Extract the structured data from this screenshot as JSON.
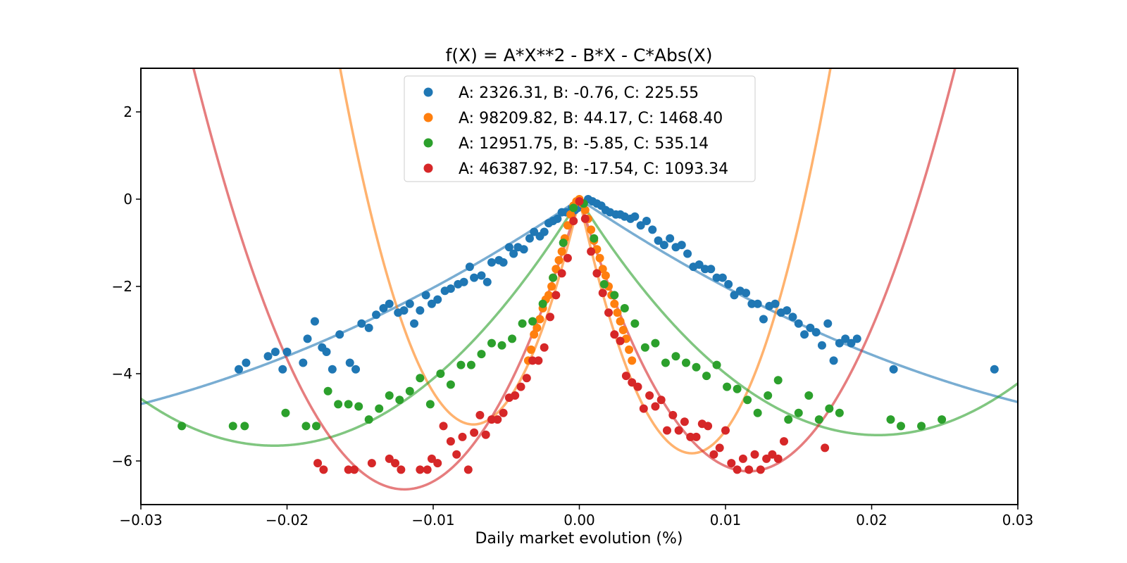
{
  "chart_data": {
    "type": "scatter",
    "title": "f(X) = A*X**2 - B*X - C*Abs(X)",
    "xlabel": "Daily market evolution (%)",
    "ylabel": "",
    "xlim": [
      -0.03,
      0.03
    ],
    "ylim": [
      -7,
      3
    ],
    "x_ticks": [
      -0.03,
      -0.02,
      -0.01,
      0.0,
      0.01,
      0.02,
      0.03
    ],
    "x_tick_labels": [
      "−0.03",
      "−0.02",
      "−0.01",
      "0.00",
      "0.01",
      "0.02",
      "0.03"
    ],
    "y_ticks": [
      2,
      0,
      -2,
      -4,
      -6
    ],
    "y_tick_labels": [
      "2",
      "0",
      "−2",
      "−4",
      "−6"
    ],
    "grid": false,
    "legend_position": "top-center",
    "series": [
      {
        "name": "A: 2326.31, B: -0.76, C: 225.55",
        "color": "#1f77b4",
        "fit": {
          "A": 2326.31,
          "B": -0.76,
          "C": 225.55
        },
        "points": [
          [
            -0.0233,
            -3.9
          ],
          [
            -0.0228,
            -3.75
          ],
          [
            -0.0213,
            -3.6
          ],
          [
            -0.0208,
            -3.5
          ],
          [
            -0.0203,
            -3.9
          ],
          [
            -0.02,
            -3.5
          ],
          [
            -0.0189,
            -3.75
          ],
          [
            -0.0186,
            -3.2
          ],
          [
            -0.0181,
            -2.8
          ],
          [
            -0.0176,
            -3.4
          ],
          [
            -0.0173,
            -3.5
          ],
          [
            -0.0169,
            -3.9
          ],
          [
            -0.0164,
            -3.1
          ],
          [
            -0.0157,
            -3.75
          ],
          [
            -0.0153,
            -3.9
          ],
          [
            -0.0149,
            -2.85
          ],
          [
            -0.0144,
            -2.95
          ],
          [
            -0.0139,
            -2.65
          ],
          [
            -0.0134,
            -2.5
          ],
          [
            -0.013,
            -2.4
          ],
          [
            -0.0124,
            -2.6
          ],
          [
            -0.012,
            -2.55
          ],
          [
            -0.0116,
            -2.4
          ],
          [
            -0.0113,
            -2.85
          ],
          [
            -0.0109,
            -2.55
          ],
          [
            -0.0105,
            -2.2
          ],
          [
            -0.0101,
            -2.4
          ],
          [
            -0.0097,
            -2.3
          ],
          [
            -0.0092,
            -2.1
          ],
          [
            -0.0088,
            -2.05
          ],
          [
            -0.0083,
            -1.95
          ],
          [
            -0.0079,
            -1.9
          ],
          [
            -0.0075,
            -1.55
          ],
          [
            -0.0072,
            -1.8
          ],
          [
            -0.0067,
            -1.75
          ],
          [
            -0.0063,
            -1.9
          ],
          [
            -0.006,
            -1.45
          ],
          [
            -0.0055,
            -1.4
          ],
          [
            -0.0052,
            -1.45
          ],
          [
            -0.0048,
            -1.1
          ],
          [
            -0.0045,
            -1.25
          ],
          [
            -0.0042,
            -1.1
          ],
          [
            -0.0038,
            -1.15
          ],
          [
            -0.0034,
            -0.9
          ],
          [
            -0.0031,
            -0.75
          ],
          [
            -0.0027,
            -0.85
          ],
          [
            -0.0024,
            -0.75
          ],
          [
            -0.0021,
            -0.55
          ],
          [
            -0.0018,
            -0.5
          ],
          [
            -0.0015,
            -0.45
          ],
          [
            -0.0012,
            -0.3
          ],
          [
            -0.0009,
            -0.3
          ],
          [
            -0.0005,
            -0.2
          ],
          [
            -0.0003,
            -0.25
          ],
          [
            -0.0001,
            -0.2
          ],
          [
            0.0003,
            -0.1
          ],
          [
            0.0006,
            0.0
          ],
          [
            0.0009,
            -0.05
          ],
          [
            0.0012,
            -0.1
          ],
          [
            0.0015,
            -0.15
          ],
          [
            0.0018,
            -0.25
          ],
          [
            0.0021,
            -0.3
          ],
          [
            0.0025,
            -0.35
          ],
          [
            0.0028,
            -0.35
          ],
          [
            0.0031,
            -0.4
          ],
          [
            0.0035,
            -0.45
          ],
          [
            0.0038,
            -0.4
          ],
          [
            0.0042,
            -0.6
          ],
          [
            0.0046,
            -0.5
          ],
          [
            0.005,
            -0.7
          ],
          [
            0.0054,
            -0.95
          ],
          [
            0.0058,
            -1.05
          ],
          [
            0.0062,
            -0.9
          ],
          [
            0.0066,
            -1.1
          ],
          [
            0.007,
            -1.05
          ],
          [
            0.0074,
            -1.25
          ],
          [
            0.0078,
            -1.55
          ],
          [
            0.0082,
            -1.5
          ],
          [
            0.0086,
            -1.6
          ],
          [
            0.009,
            -1.6
          ],
          [
            0.0094,
            -1.8
          ],
          [
            0.0098,
            -1.8
          ],
          [
            0.0102,
            -1.95
          ],
          [
            0.0106,
            -2.2
          ],
          [
            0.011,
            -2.1
          ],
          [
            0.0114,
            -2.15
          ],
          [
            0.0118,
            -2.4
          ],
          [
            0.0122,
            -2.4
          ],
          [
            0.0126,
            -2.75
          ],
          [
            0.013,
            -2.45
          ],
          [
            0.0134,
            -2.4
          ],
          [
            0.0138,
            -2.6
          ],
          [
            0.0142,
            -2.55
          ],
          [
            0.0146,
            -2.7
          ],
          [
            0.015,
            -2.85
          ],
          [
            0.0154,
            -3.1
          ],
          [
            0.0158,
            -2.95
          ],
          [
            0.0162,
            -3.05
          ],
          [
            0.0166,
            -3.35
          ],
          [
            0.017,
            -2.85
          ],
          [
            0.0174,
            -3.7
          ],
          [
            0.0178,
            -3.3
          ],
          [
            0.0182,
            -3.2
          ],
          [
            0.0186,
            -3.3
          ],
          [
            0.019,
            -3.2
          ],
          [
            0.0215,
            -3.9
          ],
          [
            0.0284,
            -3.9
          ]
        ]
      },
      {
        "name": "A: 98209.82, B: 44.17, C: 1468.40",
        "color": "#ff7f0e",
        "fit": {
          "A": 98209.82,
          "B": 44.17,
          "C": 1468.4
        },
        "points": [
          [
            -0.0035,
            -3.7
          ],
          [
            -0.0033,
            -3.45
          ],
          [
            -0.0031,
            -3.1
          ],
          [
            -0.0029,
            -2.95
          ],
          [
            -0.0027,
            -2.75
          ],
          [
            -0.0025,
            -2.5
          ],
          [
            -0.0023,
            -2.3
          ],
          [
            -0.0021,
            -2.2
          ],
          [
            -0.0019,
            -2.0
          ],
          [
            -0.0018,
            -1.8
          ],
          [
            -0.0016,
            -1.6
          ],
          [
            -0.0014,
            -1.4
          ],
          [
            -0.0012,
            -1.2
          ],
          [
            -0.001,
            -0.9
          ],
          [
            -0.0008,
            -0.6
          ],
          [
            -0.0006,
            -0.35
          ],
          [
            -0.0004,
            -0.15
          ],
          [
            -0.0002,
            -0.05
          ],
          [
            0.0,
            0.0
          ],
          [
            0.0002,
            -0.1
          ],
          [
            0.0004,
            -0.25
          ],
          [
            0.0006,
            -0.45
          ],
          [
            0.0008,
            -0.7
          ],
          [
            0.001,
            -0.95
          ],
          [
            0.0012,
            -1.15
          ],
          [
            0.0014,
            -1.35
          ],
          [
            0.0016,
            -1.6
          ],
          [
            0.0018,
            -1.75
          ],
          [
            0.002,
            -2.0
          ],
          [
            0.0022,
            -2.2
          ],
          [
            0.0024,
            -2.4
          ],
          [
            0.0026,
            -2.6
          ],
          [
            0.0028,
            -2.8
          ],
          [
            0.003,
            -3.0
          ],
          [
            0.0032,
            -3.2
          ],
          [
            0.0034,
            -3.45
          ],
          [
            0.0036,
            -3.7
          ]
        ]
      },
      {
        "name": "A: 12951.75, B: -5.85, C: 535.14",
        "color": "#2ca02c",
        "fit": {
          "A": 12951.75,
          "B": -5.85,
          "C": 535.14
        },
        "points": [
          [
            -0.0272,
            -5.2
          ],
          [
            -0.0237,
            -5.2
          ],
          [
            -0.0229,
            -5.2
          ],
          [
            -0.0201,
            -4.9
          ],
          [
            -0.0187,
            -5.2
          ],
          [
            -0.018,
            -5.2
          ],
          [
            -0.0172,
            -4.4
          ],
          [
            -0.0165,
            -4.7
          ],
          [
            -0.0158,
            -4.7
          ],
          [
            -0.0151,
            -4.75
          ],
          [
            -0.0144,
            -5.05
          ],
          [
            -0.0137,
            -4.8
          ],
          [
            -0.013,
            -4.5
          ],
          [
            -0.0123,
            -4.6
          ],
          [
            -0.0116,
            -4.4
          ],
          [
            -0.0109,
            -4.1
          ],
          [
            -0.0102,
            -4.7
          ],
          [
            -0.0095,
            -4.0
          ],
          [
            -0.0088,
            -4.25
          ],
          [
            -0.0081,
            -3.8
          ],
          [
            -0.0074,
            -3.8
          ],
          [
            -0.0067,
            -3.55
          ],
          [
            -0.006,
            -3.3
          ],
          [
            -0.0053,
            -3.35
          ],
          [
            -0.0046,
            -3.2
          ],
          [
            -0.0039,
            -2.85
          ],
          [
            -0.0032,
            -2.8
          ],
          [
            -0.0025,
            -2.4
          ],
          [
            -0.0018,
            -1.8
          ],
          [
            -0.0011,
            -1.0
          ],
          [
            -0.0004,
            -0.2
          ],
          [
            0.0003,
            -0.1
          ],
          [
            0.001,
            -0.9
          ],
          [
            0.0017,
            -1.95
          ],
          [
            0.0024,
            -2.2
          ],
          [
            0.0031,
            -2.5
          ],
          [
            0.0038,
            -2.85
          ],
          [
            0.0045,
            -3.4
          ],
          [
            0.0052,
            -3.3
          ],
          [
            0.0059,
            -3.75
          ],
          [
            0.0066,
            -3.6
          ],
          [
            0.0073,
            -3.75
          ],
          [
            0.008,
            -3.85
          ],
          [
            0.0087,
            -4.05
          ],
          [
            0.0094,
            -3.8
          ],
          [
            0.0101,
            -4.3
          ],
          [
            0.0108,
            -4.35
          ],
          [
            0.0115,
            -4.6
          ],
          [
            0.0122,
            -4.9
          ],
          [
            0.0129,
            -4.5
          ],
          [
            0.0136,
            -4.15
          ],
          [
            0.0143,
            -5.05
          ],
          [
            0.015,
            -4.9
          ],
          [
            0.0157,
            -4.5
          ],
          [
            0.0164,
            -5.05
          ],
          [
            0.0171,
            -4.8
          ],
          [
            0.0178,
            -4.9
          ],
          [
            0.0213,
            -5.05
          ],
          [
            0.022,
            -5.2
          ],
          [
            0.0234,
            -5.2
          ],
          [
            0.0248,
            -5.05
          ]
        ]
      },
      {
        "name": "A: 46387.92, B: -17.54, C: 1093.34",
        "color": "#d62728",
        "fit": {
          "A": 46387.92,
          "B": -17.54,
          "C": 1093.34
        },
        "points": [
          [
            -0.0179,
            -6.05
          ],
          [
            -0.0175,
            -6.2
          ],
          [
            -0.0158,
            -6.2
          ],
          [
            -0.0154,
            -6.2
          ],
          [
            -0.0142,
            -6.05
          ],
          [
            -0.013,
            -5.95
          ],
          [
            -0.0126,
            -6.05
          ],
          [
            -0.0122,
            -6.2
          ],
          [
            -0.0109,
            -6.2
          ],
          [
            -0.0104,
            -6.2
          ],
          [
            -0.0101,
            -5.95
          ],
          [
            -0.0097,
            -6.05
          ],
          [
            -0.0093,
            -5.2
          ],
          [
            -0.0088,
            -5.55
          ],
          [
            -0.0084,
            -5.85
          ],
          [
            -0.008,
            -5.45
          ],
          [
            -0.0076,
            -6.2
          ],
          [
            -0.0072,
            -5.35
          ],
          [
            -0.0068,
            -4.95
          ],
          [
            -0.0064,
            -5.4
          ],
          [
            -0.006,
            -5.05
          ],
          [
            -0.0056,
            -5.05
          ],
          [
            -0.0052,
            -4.9
          ],
          [
            -0.0048,
            -4.55
          ],
          [
            -0.0044,
            -4.5
          ],
          [
            -0.004,
            -4.3
          ],
          [
            -0.0036,
            -4.1
          ],
          [
            -0.0032,
            -3.7
          ],
          [
            -0.0028,
            -3.7
          ],
          [
            -0.0024,
            -3.4
          ],
          [
            -0.002,
            -2.7
          ],
          [
            -0.0016,
            -2.2
          ],
          [
            -0.0012,
            -1.7
          ],
          [
            -0.0008,
            -1.35
          ],
          [
            -0.0004,
            -0.5
          ],
          [
            0.0,
            -0.05
          ],
          [
            0.0004,
            -0.45
          ],
          [
            0.0008,
            -1.2
          ],
          [
            0.0012,
            -1.7
          ],
          [
            0.0016,
            -2.15
          ],
          [
            0.002,
            -2.6
          ],
          [
            0.0024,
            -3.1
          ],
          [
            0.0028,
            -3.25
          ],
          [
            0.0032,
            -4.05
          ],
          [
            0.0036,
            -4.2
          ],
          [
            0.004,
            -4.3
          ],
          [
            0.0044,
            -4.8
          ],
          [
            0.0048,
            -4.5
          ],
          [
            0.0052,
            -4.75
          ],
          [
            0.0056,
            -4.6
          ],
          [
            0.006,
            -5.3
          ],
          [
            0.0064,
            -4.95
          ],
          [
            0.0068,
            -5.3
          ],
          [
            0.0072,
            -5.1
          ],
          [
            0.0076,
            -5.45
          ],
          [
            0.008,
            -5.45
          ],
          [
            0.0084,
            -5.15
          ],
          [
            0.0088,
            -5.2
          ],
          [
            0.0092,
            -5.85
          ],
          [
            0.0096,
            -5.7
          ],
          [
            0.01,
            -5.3
          ],
          [
            0.0104,
            -6.05
          ],
          [
            0.0108,
            -6.2
          ],
          [
            0.0112,
            -5.95
          ],
          [
            0.0116,
            -6.2
          ],
          [
            0.012,
            -5.85
          ],
          [
            0.0124,
            -6.2
          ],
          [
            0.0128,
            -5.95
          ],
          [
            0.0132,
            -5.85
          ],
          [
            0.0136,
            -5.95
          ],
          [
            0.014,
            -5.55
          ],
          [
            0.0168,
            -5.7
          ]
        ]
      }
    ]
  }
}
